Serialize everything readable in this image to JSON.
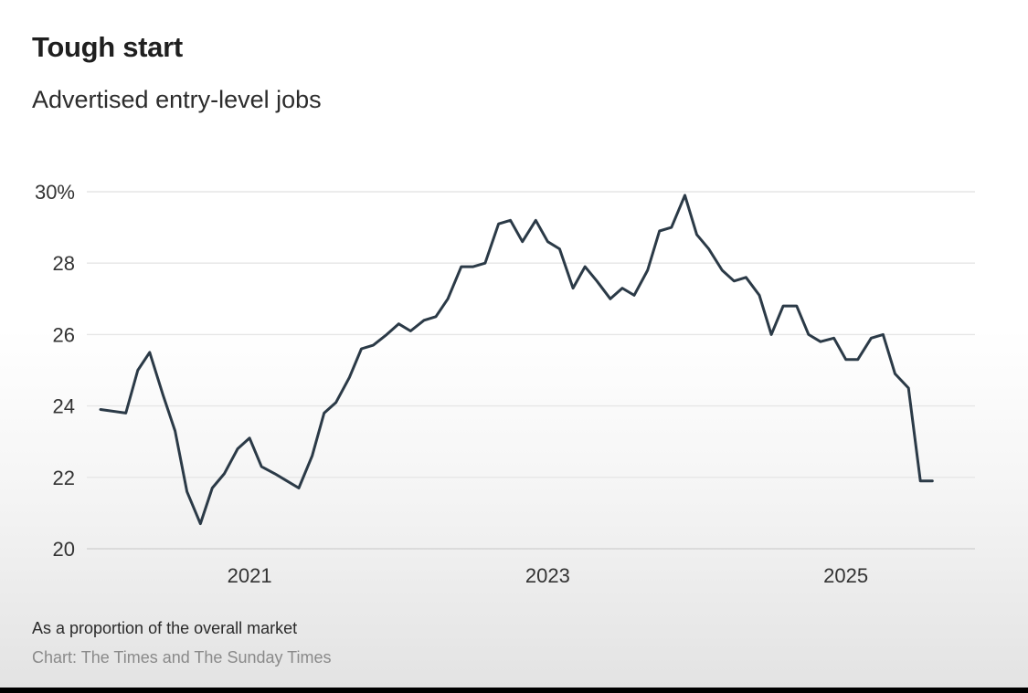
{
  "title": "Tough start",
  "subtitle": "Advertised entry-level jobs",
  "footnote": "As a proportion of the overall market",
  "source": "Chart: The Times and The Sunday Times",
  "colors": {
    "line": "#2b3a47",
    "grid": "#e6e6e6",
    "axis_text": "#333333"
  },
  "chart_data": {
    "type": "line",
    "title": "Tough start",
    "subtitle": "Advertised entry-level jobs",
    "xlabel": "",
    "ylabel": "",
    "ylim": [
      20,
      30
    ],
    "xlim": [
      2020.0,
      2025.75
    ],
    "y_ticks": [
      20,
      22,
      24,
      26,
      28,
      30
    ],
    "y_tick_labels": [
      "20",
      "22",
      "24",
      "26",
      "28",
      "30%"
    ],
    "x_ticks": [
      2021,
      2023,
      2025
    ],
    "x_tick_labels": [
      "2021",
      "2023",
      "2025"
    ],
    "grid": true,
    "legend": "none",
    "series": [
      {
        "x": [
          2020.0,
          2020.17,
          2020.25,
          2020.33,
          2020.42,
          2020.5,
          2020.58,
          2020.67,
          2020.75,
          2020.83,
          2020.92,
          2021.0,
          2021.08,
          2021.17,
          2021.25,
          2021.33,
          2021.42,
          2021.5,
          2021.58,
          2021.67,
          2021.75,
          2021.83,
          2021.92,
          2022.0,
          2022.08,
          2022.17,
          2022.25,
          2022.33,
          2022.42,
          2022.5,
          2022.58,
          2022.67,
          2022.75,
          2022.83,
          2022.92,
          2023.0,
          2023.08,
          2023.17,
          2023.25,
          2023.33,
          2023.42,
          2023.5,
          2023.58,
          2023.67,
          2023.75,
          2023.83,
          2023.92,
          2024.0,
          2024.08,
          2024.17,
          2024.25,
          2024.33,
          2024.42,
          2024.5,
          2024.58,
          2024.67,
          2024.75,
          2024.83,
          2024.92,
          2025.0,
          2025.08,
          2025.17,
          2025.25,
          2025.33,
          2025.42,
          2025.5,
          2025.58
        ],
        "y": [
          23.9,
          23.8,
          25.0,
          25.5,
          24.3,
          23.3,
          21.6,
          20.7,
          21.7,
          22.1,
          22.8,
          23.1,
          22.3,
          22.1,
          21.9,
          21.7,
          22.6,
          23.8,
          24.1,
          24.8,
          25.6,
          25.7,
          26.0,
          26.3,
          26.1,
          26.4,
          26.5,
          27.0,
          27.9,
          27.9,
          28.0,
          29.1,
          29.2,
          28.6,
          29.2,
          28.6,
          28.4,
          27.3,
          27.9,
          27.5,
          27.0,
          27.3,
          27.1,
          27.8,
          28.9,
          29.0,
          29.9,
          28.8,
          28.4,
          27.8,
          27.5,
          27.6,
          27.1,
          26.0,
          26.8,
          26.8,
          26.0,
          25.8,
          25.9,
          25.3,
          25.3,
          25.9,
          26.0,
          24.9,
          24.5,
          21.9,
          21.9
        ]
      }
    ]
  }
}
